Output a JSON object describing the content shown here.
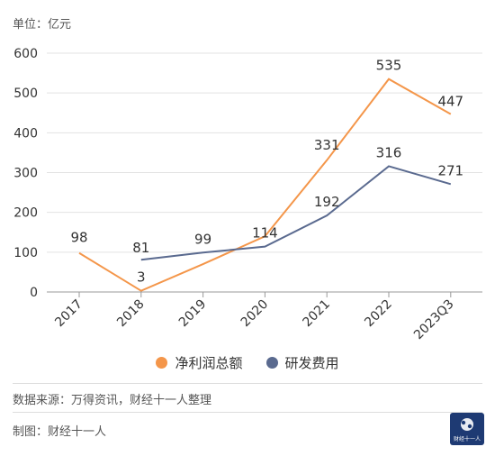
{
  "unit_label": "单位：亿元",
  "source_note": "数据来源：万得资讯，财经十一人整理",
  "credit_note": "制图：财经十一人",
  "logo_text": "财经十一人",
  "colors": {
    "net_profit": "#f4964a",
    "rd_expense": "#5a6a8f",
    "grid": "#e3e3e3",
    "axis": "#999999"
  },
  "chart_data": {
    "type": "line",
    "categories": [
      "2017",
      "2018",
      "2019",
      "2020",
      "2021",
      "2022",
      "2023Q3"
    ],
    "ylim": [
      0,
      600
    ],
    "yticks": [
      "0",
      "100",
      "200",
      "300",
      "400",
      "500",
      "600"
    ],
    "grid": true,
    "legend_position": "bottom-center",
    "series": [
      {
        "name": "净利润总额",
        "values": [
          98,
          3,
          70,
          140,
          331,
          535,
          447
        ],
        "labels": [
          "98",
          "3",
          "",
          "",
          "331",
          "535",
          "447"
        ]
      },
      {
        "name": "研发费用",
        "values": [
          null,
          81,
          99,
          114,
          192,
          316,
          271
        ],
        "labels": [
          "",
          "81",
          "99",
          "114",
          "192",
          "316",
          "271"
        ]
      }
    ]
  }
}
